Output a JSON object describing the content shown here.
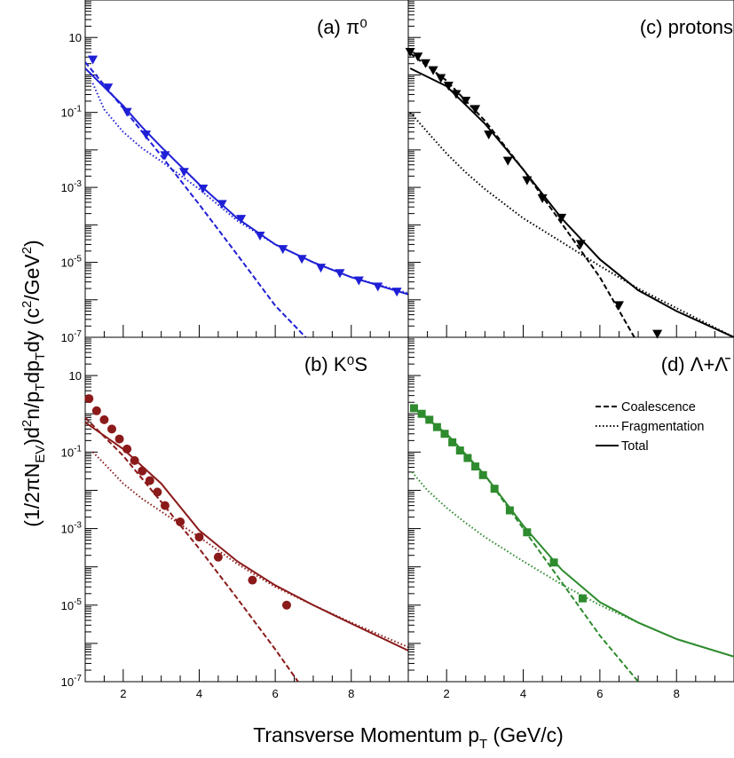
{
  "figure": {
    "xlabel_main": "Transverse Momentum p",
    "xlabel_sub": "T",
    "xlabel_tail": " (GeV/c)",
    "ylabel": "(1/2πN_EV)d^2n/p_Tdp_Tdy (c^2/GeV^2)"
  },
  "legend": {
    "coalescence": "Coalescence",
    "fragmentation": "Fragmentation",
    "total": "Total"
  },
  "chart_data": [
    {
      "type": "scatter",
      "id": "a",
      "panel_label": "(a)  π⁰",
      "color": "#1f1fd6",
      "marker": "triangle-down",
      "xlim": [
        1,
        9.5
      ],
      "ylim": [
        1e-07,
        100
      ],
      "yscale": "log",
      "xticks": [],
      "yticks": [
        "10",
        "10^-1",
        "10^-3",
        "10^-5",
        "10^-7"
      ],
      "points": {
        "x": [
          1.2,
          1.6,
          2.1,
          2.6,
          3.1,
          3.6,
          4.1,
          4.6,
          5.1,
          5.6,
          6.2,
          6.7,
          7.2,
          7.7,
          8.2,
          8.7,
          9.2
        ],
        "y": [
          2.5,
          0.45,
          0.1,
          0.025,
          0.007,
          0.0025,
          0.0009,
          0.00035,
          0.00014,
          5e-05,
          2.2e-05,
          1.2e-05,
          7e-06,
          5e-06,
          3.2e-06,
          2.2e-06,
          1.6e-06
        ]
      },
      "curves": {
        "coalescence": {
          "x": [
            1.0,
            2.0,
            3.0,
            4.0,
            5.0,
            6.0,
            6.8
          ],
          "y": [
            2.2,
            0.13,
            0.007,
            0.00035,
            1.6e-05,
            7e-07,
            1e-07
          ]
        },
        "fragmentation": {
          "x": [
            1.2,
            1.5,
            2.0,
            2.5,
            3.0,
            4.0,
            5.0,
            6.0,
            7.0,
            8.0,
            9.5
          ],
          "y": [
            0.6,
            0.12,
            0.03,
            0.011,
            0.005,
            0.0009,
            0.00013,
            3e-05,
            1e-05,
            4e-06,
            1.5e-06
          ]
        },
        "total": {
          "x": [
            1.0,
            2.0,
            2.5,
            3.0,
            4.0,
            5.0,
            6.0,
            7.0,
            8.0,
            9.5
          ],
          "y": [
            1.5,
            0.15,
            0.04,
            0.012,
            0.0012,
            0.00015,
            3e-05,
            1e-05,
            4e-06,
            1.4e-06
          ]
        }
      }
    },
    {
      "type": "scatter",
      "id": "c",
      "panel_label": "(c) protons",
      "color": "#000000",
      "marker": "triangle-down",
      "xlim": [
        1,
        9.5
      ],
      "ylim": [
        1e-07,
        100
      ],
      "yscale": "log",
      "xticks": [],
      "yticks": [],
      "points": {
        "x": [
          1.05,
          1.25,
          1.45,
          1.65,
          1.85,
          2.05,
          2.25,
          2.5,
          2.75,
          3.1,
          3.6,
          4.1,
          4.5,
          5.0,
          5.5,
          6.5,
          7.5
        ],
        "y": [
          4.0,
          3.0,
          2.0,
          1.3,
          0.8,
          0.5,
          0.3,
          0.2,
          0.12,
          0.025,
          0.005,
          0.0015,
          0.0005,
          0.00015,
          3e-05,
          7e-07,
          1.2e-07
        ]
      },
      "curves": {
        "coalescence": {
          "x": [
            1.05,
            2.0,
            3.0,
            4.0,
            5.0,
            6.0,
            6.9
          ],
          "y": [
            3.8,
            0.7,
            0.06,
            0.003,
            0.00011,
            4e-06,
            1e-07
          ]
        },
        "fragmentation": {
          "x": [
            1.05,
            1.5,
            2.0,
            2.5,
            3.0,
            4.0,
            5.0,
            6.0,
            7.0,
            8.0,
            9.5
          ],
          "y": [
            0.1,
            0.03,
            0.008,
            0.0025,
            0.0009,
            0.00015,
            3.5e-05,
            8e-06,
            2e-06,
            6e-07,
            1e-07
          ]
        },
        "total": {
          "x": [
            1.05,
            2.0,
            3.0,
            4.0,
            5.0,
            6.0,
            7.0,
            8.0,
            9.5
          ],
          "y": [
            1.5,
            0.5,
            0.05,
            0.003,
            0.00015,
            1.2e-05,
            1.8e-06,
            5e-07,
            1e-07
          ]
        }
      }
    },
    {
      "type": "scatter",
      "id": "b",
      "panel_label": "(b)  K⁰S",
      "color": "#8b1a1a",
      "marker": "circle",
      "xlim": [
        1,
        9.5
      ],
      "ylim": [
        1e-07,
        100
      ],
      "yscale": "log",
      "xticks": [
        "2",
        "4",
        "6",
        "8"
      ],
      "yticks": [
        "10",
        "10^-1",
        "10^-3",
        "10^-5",
        "10^-7"
      ],
      "points": {
        "x": [
          1.1,
          1.3,
          1.5,
          1.7,
          1.9,
          2.1,
          2.3,
          2.5,
          2.7,
          2.9,
          3.1,
          3.5,
          4.0,
          4.5,
          5.4,
          6.3
        ],
        "y": [
          2.5,
          1.2,
          0.7,
          0.4,
          0.22,
          0.12,
          0.06,
          0.032,
          0.018,
          0.009,
          0.004,
          0.0015,
          0.0006,
          0.00018,
          4.5e-05,
          1e-05
        ]
      },
      "curves": {
        "coalescence": {
          "x": [
            1.0,
            2.0,
            3.0,
            4.0,
            5.0,
            6.0,
            6.6
          ],
          "y": [
            0.8,
            0.08,
            0.005,
            0.0003,
            1.5e-05,
            7e-07,
            1e-07
          ]
        },
        "fragmentation": {
          "x": [
            1.2,
            1.5,
            2.0,
            2.5,
            3.0,
            4.0,
            5.0,
            6.0,
            7.0,
            8.0,
            9.5
          ],
          "y": [
            0.1,
            0.05,
            0.015,
            0.006,
            0.0028,
            0.0006,
            0.00012,
            3e-05,
            1e-05,
            3.5e-06,
            8e-07
          ]
        },
        "total": {
          "x": [
            1.0,
            2.0,
            3.0,
            4.0,
            5.0,
            6.0,
            7.0,
            8.0,
            9.5
          ],
          "y": [
            0.6,
            0.12,
            0.015,
            0.0009,
            0.00014,
            3.3e-05,
            1e-05,
            3.3e-06,
            6.5e-07
          ]
        }
      }
    },
    {
      "type": "scatter",
      "id": "d",
      "panel_label": "(d) Λ+Λ̄",
      "color": "#2e8b2e",
      "marker": "square",
      "xlim": [
        1,
        9.5
      ],
      "ylim": [
        1e-07,
        100
      ],
      "yscale": "log",
      "xticks": [
        "2",
        "4",
        "6",
        "8"
      ],
      "yticks": [],
      "points": {
        "x": [
          1.15,
          1.35,
          1.55,
          1.75,
          1.95,
          2.15,
          2.35,
          2.55,
          2.75,
          2.95,
          3.25,
          3.65,
          4.1,
          4.8,
          5.55
        ],
        "y": [
          1.4,
          1.0,
          0.7,
          0.45,
          0.3,
          0.18,
          0.11,
          0.07,
          0.042,
          0.025,
          0.011,
          0.003,
          0.0008,
          0.00013,
          1.5e-05
        ]
      },
      "curves": {
        "coalescence": {
          "x": [
            1.1,
            2.0,
            3.0,
            4.0,
            5.0,
            6.0,
            7.0
          ],
          "y": [
            1.5,
            0.3,
            0.025,
            0.001,
            4e-05,
            1.6e-06,
            1e-07
          ]
        },
        "fragmentation": {
          "x": [
            1.1,
            1.5,
            2.0,
            2.5,
            3.0,
            4.0,
            5.0,
            6.0,
            7.0,
            8.0,
            9.5
          ],
          "y": [
            0.03,
            0.01,
            0.0035,
            0.0014,
            0.0006,
            0.00014,
            3.5e-05,
            1e-05,
            3.5e-06,
            1.3e-06,
            4.5e-07
          ]
        },
        "total": {
          "x": [
            1.1,
            2.0,
            3.0,
            4.0,
            5.0,
            6.0,
            7.0,
            8.0,
            9.5
          ],
          "y": [
            1.5,
            0.3,
            0.025,
            0.0012,
            8.5e-05,
            1.2e-05,
            3.5e-06,
            1.3e-06,
            4.5e-07
          ]
        }
      }
    }
  ]
}
